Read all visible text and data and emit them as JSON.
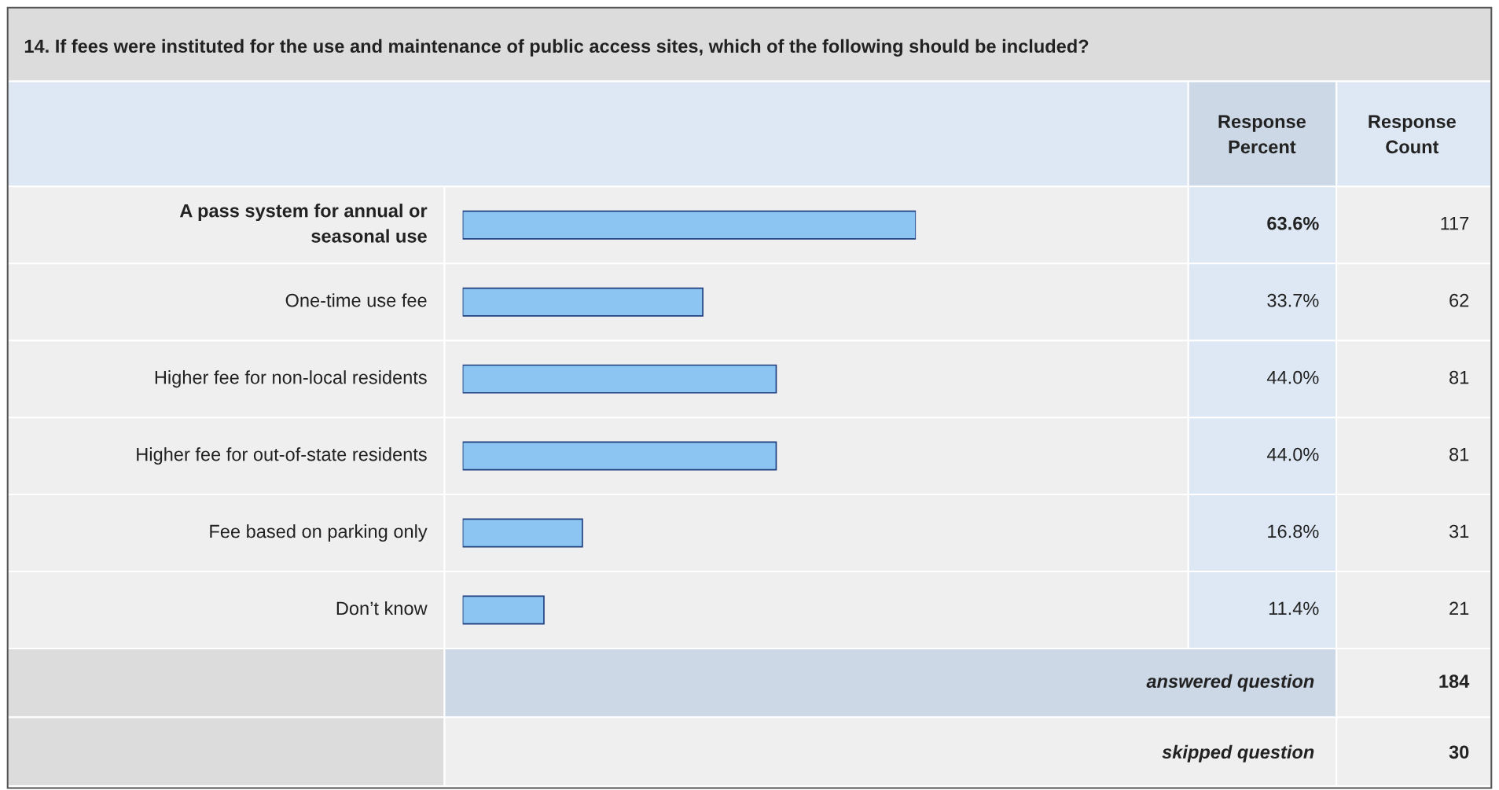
{
  "chart_data": {
    "type": "bar",
    "orientation": "horizontal",
    "title": "14. If fees were instituted for the use and maintenance of public access sites, which of the following should be included?",
    "categories": [
      "A pass system for annual or\nseasonal use",
      "One-time use fee",
      "Higher fee for non-local residents",
      "Higher fee for out-of-state residents",
      "Fee based on parking only",
      "Don’t know"
    ],
    "series": [
      {
        "color": "#8cc4f2",
        "values": [
          63.6,
          33.7,
          44.0,
          44.0,
          16.8,
          11.4
        ],
        "value_labels": [
          "63.6%",
          "33.7%",
          "44.0%",
          "44.0%",
          "16.8%",
          "11.4%"
        ]
      }
    ],
    "annotations": [
      "Response\nPercent",
      "Response\nCount",
      "117",
      "62",
      "81",
      "81",
      "31",
      "21",
      "answered question",
      "184",
      "skipped question",
      "30"
    ]
  }
}
